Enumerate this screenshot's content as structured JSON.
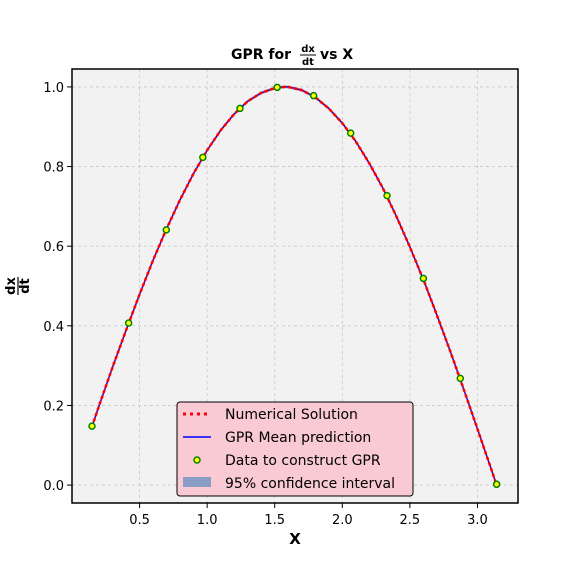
{
  "chart_data": {
    "type": "line",
    "title_prefix": "GPR for",
    "title_frac_num": "dx",
    "title_frac_den": "dt",
    "title_suffix": "vs X",
    "xlabel": "X",
    "ylabel_num": "dx",
    "ylabel_den": "dt",
    "xlim": [
      0.0,
      3.3
    ],
    "ylim": [
      -0.045,
      1.045
    ],
    "xticks": [
      0.5,
      1.0,
      1.5,
      2.0,
      2.5,
      3.0
    ],
    "xtick_labels": [
      "0.5",
      "1.0",
      "1.5",
      "2.0",
      "2.5",
      "3.0"
    ],
    "yticks": [
      0.0,
      0.2,
      0.4,
      0.6,
      0.8,
      1.0
    ],
    "ytick_labels": [
      "0.0",
      "0.2",
      "0.4",
      "0.6",
      "0.8",
      "1.0"
    ],
    "grid": true,
    "legend_position": "lower-center",
    "colors": {
      "numerical": "#ff0000",
      "gpr_mean": "#0000ff",
      "data_face": "#ffff00",
      "data_edge": "#008000",
      "confidence": "#8a9dc5",
      "legend_bg": "#f9cad4",
      "plot_bg": "#f2f2f2"
    },
    "series": [
      {
        "name": "Numerical Solution",
        "style": "dotted",
        "x": [
          0.148,
          0.2,
          0.3,
          0.4,
          0.5,
          0.6,
          0.7,
          0.8,
          0.9,
          1.0,
          1.1,
          1.2,
          1.3,
          1.4,
          1.5,
          1.571,
          1.6,
          1.7,
          1.8,
          1.9,
          2.0,
          2.1,
          2.2,
          2.3,
          2.4,
          2.5,
          2.6,
          2.7,
          2.8,
          2.9,
          3.0,
          3.1,
          3.142
        ],
        "y": [
          0.147,
          0.199,
          0.296,
          0.389,
          0.479,
          0.565,
          0.644,
          0.717,
          0.783,
          0.841,
          0.891,
          0.932,
          0.964,
          0.985,
          0.997,
          1.0,
          1.0,
          0.992,
          0.974,
          0.946,
          0.909,
          0.863,
          0.808,
          0.746,
          0.675,
          0.598,
          0.516,
          0.427,
          0.335,
          0.239,
          0.141,
          0.042,
          0.0
        ]
      },
      {
        "name": "GPR Mean prediction",
        "style": "solid",
        "x": [
          0.148,
          0.2,
          0.3,
          0.4,
          0.5,
          0.6,
          0.7,
          0.8,
          0.9,
          1.0,
          1.1,
          1.2,
          1.3,
          1.4,
          1.5,
          1.571,
          1.6,
          1.7,
          1.8,
          1.9,
          2.0,
          2.1,
          2.2,
          2.3,
          2.4,
          2.5,
          2.6,
          2.7,
          2.8,
          2.9,
          3.0,
          3.1,
          3.142
        ],
        "y": [
          0.147,
          0.199,
          0.296,
          0.389,
          0.479,
          0.565,
          0.644,
          0.717,
          0.783,
          0.841,
          0.891,
          0.932,
          0.964,
          0.985,
          0.997,
          1.0,
          1.0,
          0.992,
          0.974,
          0.946,
          0.909,
          0.863,
          0.808,
          0.746,
          0.675,
          0.598,
          0.516,
          0.427,
          0.335,
          0.239,
          0.141,
          0.042,
          0.0
        ]
      },
      {
        "name": "Data to construct GPR",
        "style": "markers",
        "x": [
          0.148,
          0.419,
          0.698,
          0.968,
          1.243,
          1.518,
          1.788,
          2.062,
          2.331,
          2.6,
          2.873,
          3.142
        ],
        "y": [
          0.148,
          0.407,
          0.641,
          0.823,
          0.946,
          0.999,
          0.978,
          0.884,
          0.727,
          0.519,
          0.268,
          0.002
        ]
      },
      {
        "name": "95% confidence interval",
        "style": "band"
      }
    ]
  }
}
